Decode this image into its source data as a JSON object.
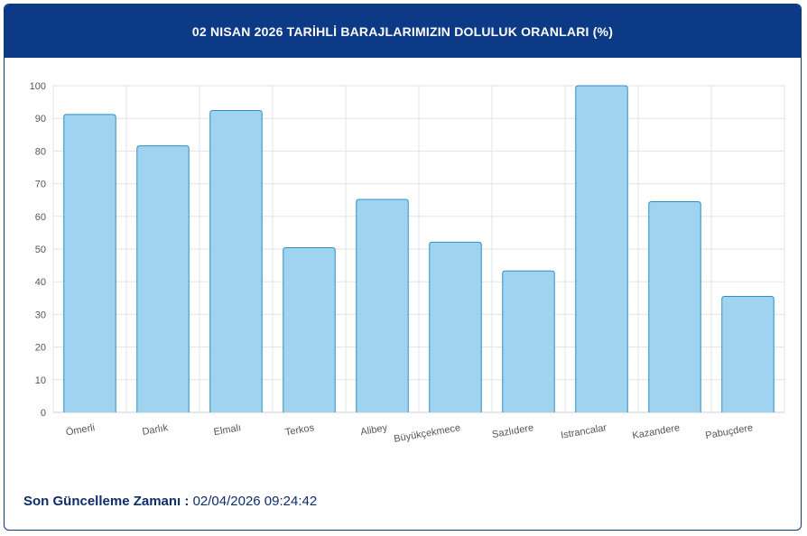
{
  "header": {
    "title": "02 NISAN 2026 TARİHLİ BARAJLARIMIZIN DOLULUK ORANLARI (%)"
  },
  "footer": {
    "label": "Son Güncelleme Zamanı :",
    "value": "02/04/2026 09:24:42"
  },
  "chart_data": {
    "type": "bar",
    "categories": [
      "Ömerli",
      "Darlık",
      "Elmalı",
      "Terkos",
      "Alibey",
      "Büyükçekmece",
      "Sazlıdere",
      "Istrancalar",
      "Kazandere",
      "Pabuçdere"
    ],
    "values": [
      91.2,
      81.6,
      92.4,
      50.4,
      65.2,
      52.1,
      43.3,
      100,
      64.5,
      35.5
    ],
    "ylim": [
      0,
      100
    ],
    "yticks": [
      0,
      10,
      20,
      30,
      40,
      50,
      60,
      70,
      80,
      90,
      100
    ],
    "grid": true,
    "colors": {
      "bar_fill": "#9fd3ef",
      "bar_stroke": "#2f8fc2",
      "grid": "#e3e3e3"
    }
  }
}
